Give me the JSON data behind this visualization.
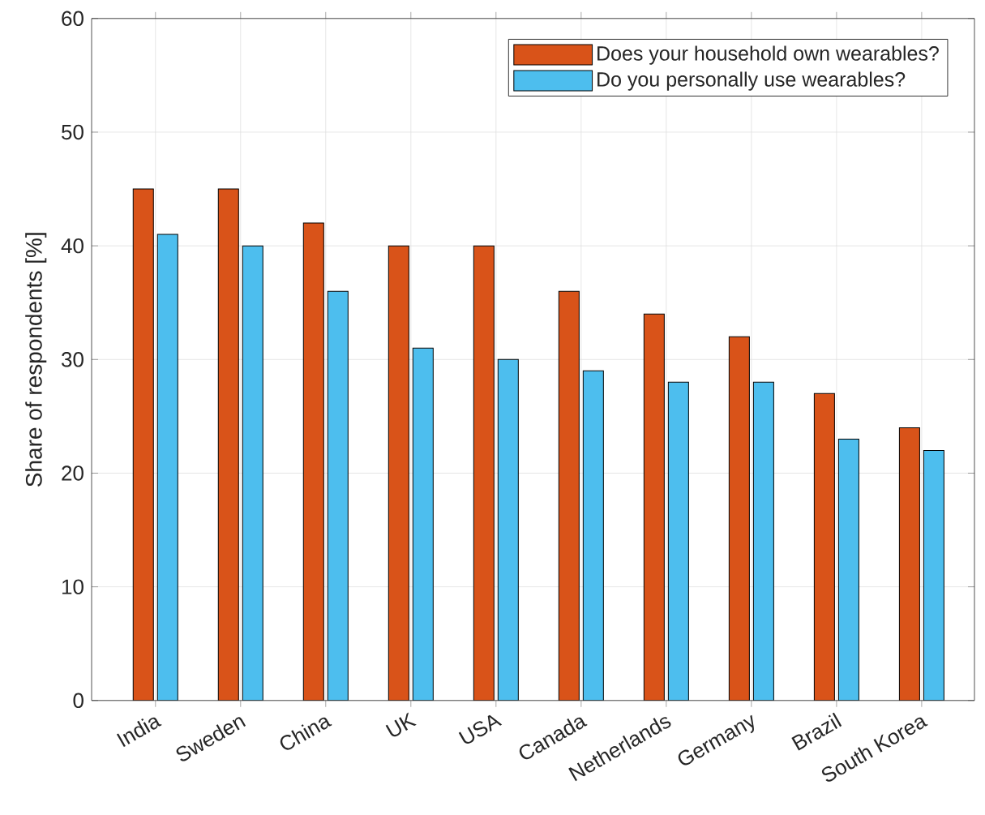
{
  "chart_data": {
    "type": "bar",
    "ylabel": "Share of respondents [%]",
    "categories": [
      "India",
      "Sweden",
      "China",
      "UK",
      "USA",
      "Canada",
      "Netherlands",
      "Germany",
      "Brazil",
      "South Korea"
    ],
    "series": [
      {
        "name": "Does your household own wearables?",
        "color": "#d95319",
        "values": [
          45,
          45,
          42,
          40,
          40,
          36,
          34,
          32,
          27,
          24
        ]
      },
      {
        "name": "Do you personally use wearables?",
        "color": "#4dbeee",
        "values": [
          41,
          40,
          36,
          31,
          30,
          29,
          28,
          28,
          23,
          22
        ]
      }
    ],
    "ylim": [
      0,
      60
    ],
    "yticks": [
      0,
      10,
      20,
      30,
      40,
      50,
      60
    ],
    "grid": true,
    "legend": "top right"
  }
}
